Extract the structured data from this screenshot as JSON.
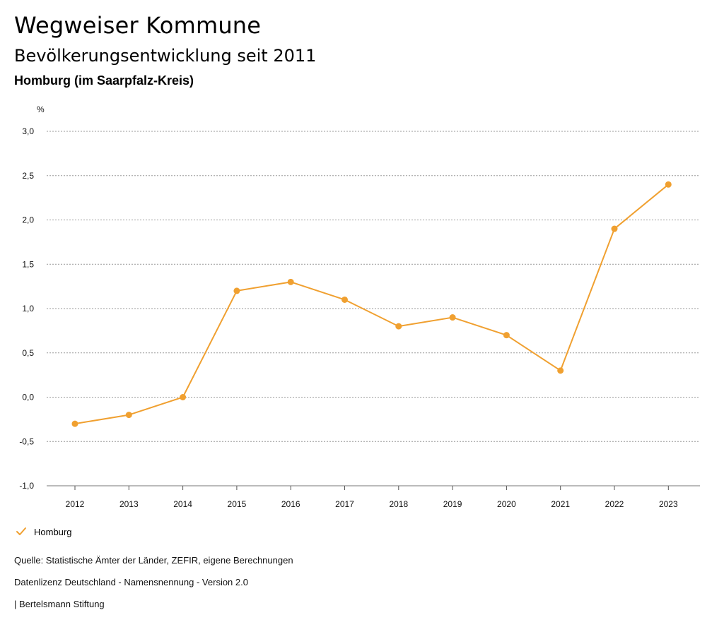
{
  "header": {
    "title": "Wegweiser Kommune",
    "subtitle": "Bevölkerungsentwicklung seit 2011",
    "region": "Homburg (im Saarpfalz-Kreis)"
  },
  "chart_data": {
    "type": "line",
    "title": "Bevölkerungsentwicklung seit 2011",
    "xlabel": "",
    "ylabel": "%",
    "categories": [
      "2012",
      "2013",
      "2014",
      "2015",
      "2016",
      "2017",
      "2018",
      "2019",
      "2020",
      "2021",
      "2022",
      "2023"
    ],
    "series": [
      {
        "name": "Homburg",
        "color": "#f0a030",
        "values": [
          -0.3,
          -0.2,
          0.0,
          1.2,
          1.3,
          1.1,
          0.8,
          0.9,
          0.7,
          0.3,
          1.9,
          2.4
        ]
      }
    ],
    "ylim": [
      -1.0,
      3.0
    ],
    "yticks": [
      3.0,
      2.5,
      2.0,
      1.5,
      1.0,
      0.5,
      0.0,
      -0.5,
      -1.0
    ],
    "ytick_labels": [
      "3,0",
      "2,5",
      "2,0",
      "1,5",
      "1,0",
      "0,5",
      "0,0",
      "-0,5",
      "-1,0"
    ],
    "grid": true,
    "legend_position": "bottom-left"
  },
  "legend": {
    "label": "Homburg",
    "icon": "check-icon"
  },
  "footer": {
    "source": "Quelle: Statistische Ämter der Länder, ZEFIR, eigene Berechnungen",
    "license": "Datenlizenz Deutschland - Namensnennung - Version 2.0",
    "brand": "| Bertelsmann Stiftung"
  }
}
